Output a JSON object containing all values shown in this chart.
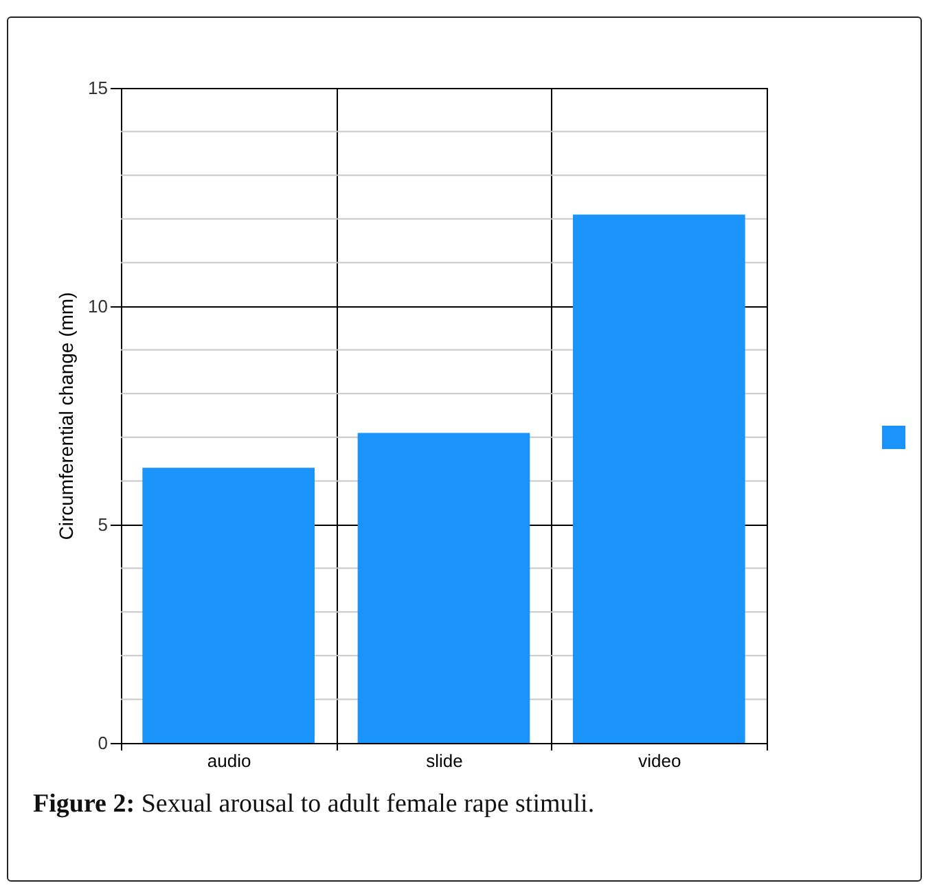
{
  "chart_data": {
    "type": "bar",
    "ylabel": "Circumferential change (mm)",
    "categories": [
      "audio",
      "slide",
      "video"
    ],
    "series": [
      {
        "color": "#1a93fb",
        "values": [
          6.3,
          7.1,
          12.1
        ]
      }
    ],
    "ylim": [
      0,
      15
    ],
    "yticks": [
      0,
      {
        "value": 1,
        "label": null
      },
      {
        "value": 2,
        "label": null
      },
      {
        "value": 3,
        "label": null
      },
      {
        "value": 4,
        "label": null
      },
      5,
      {
        "value": 6,
        "label": null
      },
      {
        "value": 7,
        "label": null
      },
      {
        "value": 8,
        "label": null
      },
      {
        "value": 9,
        "label": null
      },
      10,
      {
        "value": 11,
        "label": null
      },
      {
        "value": 12,
        "label": null
      },
      {
        "value": 13,
        "label": null
      },
      {
        "value": 14,
        "label": null
      },
      15
    ],
    "grid": true,
    "annotations": [
      "Figure 2: Sexual arousal to adult female rape stimuli."
    ]
  }
}
